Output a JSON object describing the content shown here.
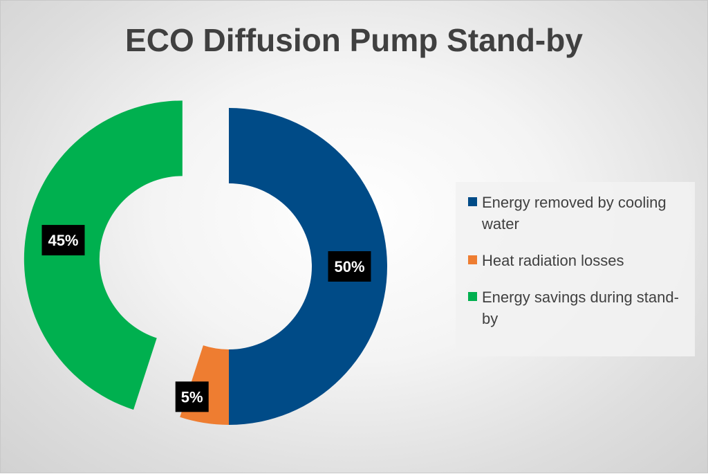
{
  "chart_data": {
    "type": "pie",
    "title": "ECO Diffusion Pump Stand-by",
    "hole": "donut",
    "exploded_series": "Energy savings during stand-by",
    "legend_position": "right",
    "series": [
      {
        "name": "Energy removed by cooling water",
        "value": 50,
        "label": "50%",
        "color": "#004b87"
      },
      {
        "name": "Heat radiation losses",
        "value": 5,
        "label": "5%",
        "color": "#ee7d31"
      },
      {
        "name": "Energy savings during stand-by",
        "value": 45,
        "label": "45%",
        "color": "#00b04f"
      }
    ]
  }
}
